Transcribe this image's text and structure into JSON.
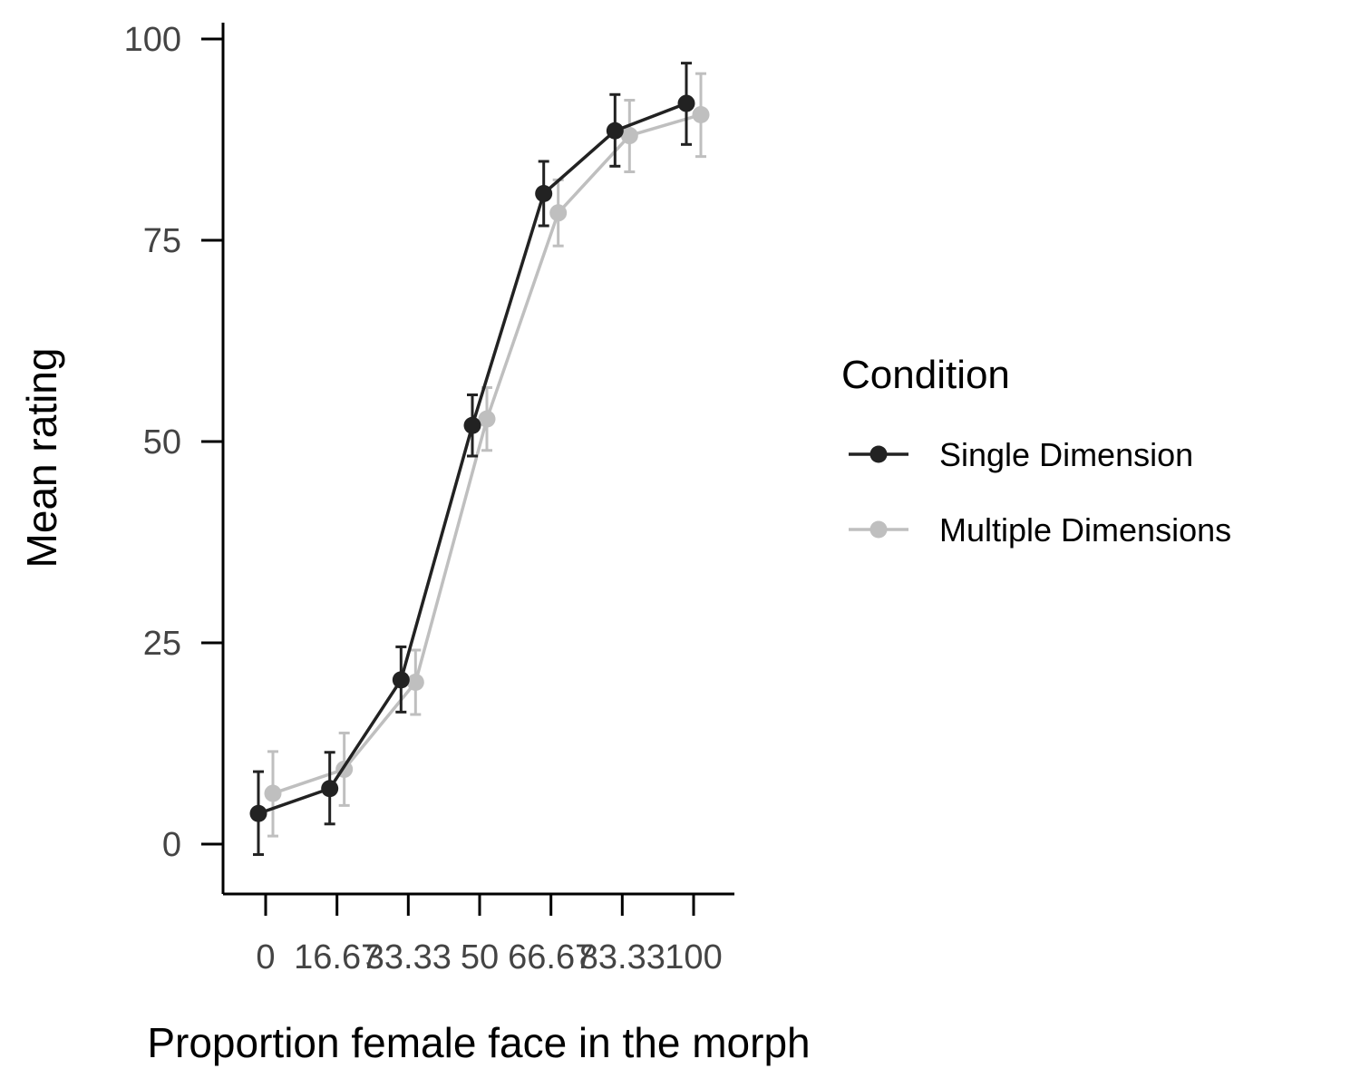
{
  "chart_data": {
    "type": "line",
    "xlabel": "Proportion female face in the morph",
    "ylabel": "Mean rating",
    "x": [
      0,
      16.67,
      33.33,
      50,
      66.67,
      83.33,
      100
    ],
    "x_tick_labels": [
      "0",
      "16.67",
      "33.33",
      "50",
      "66.67",
      "83.33",
      "100"
    ],
    "y_ticks": [
      0,
      25,
      50,
      75,
      100
    ],
    "y_tick_labels": [
      "0",
      "25",
      "50",
      "75",
      "100"
    ],
    "ylim": [
      -6,
      102
    ],
    "grid": false,
    "legend": {
      "title": "Condition",
      "placement": "right"
    },
    "series": [
      {
        "name": "Single Dimension",
        "color": "#222222",
        "values": [
          3.8,
          6.9,
          20.4,
          52.0,
          80.8,
          88.6,
          92.0
        ],
        "error_low": [
          -1.3,
          2.5,
          16.4,
          48.2,
          76.8,
          84.2,
          86.9
        ],
        "error_high": [
          9.0,
          11.4,
          24.5,
          55.8,
          84.8,
          93.1,
          97.0
        ]
      },
      {
        "name": "Multiple Dimensions",
        "color": "#BFBFBF",
        "values": [
          6.3,
          9.3,
          20.1,
          52.8,
          78.4,
          88.0,
          90.6
        ],
        "error_low": [
          1.0,
          4.8,
          16.1,
          48.9,
          74.3,
          83.5,
          85.4
        ],
        "error_high": [
          11.5,
          13.8,
          24.1,
          56.7,
          82.5,
          92.4,
          95.7
        ]
      }
    ]
  }
}
